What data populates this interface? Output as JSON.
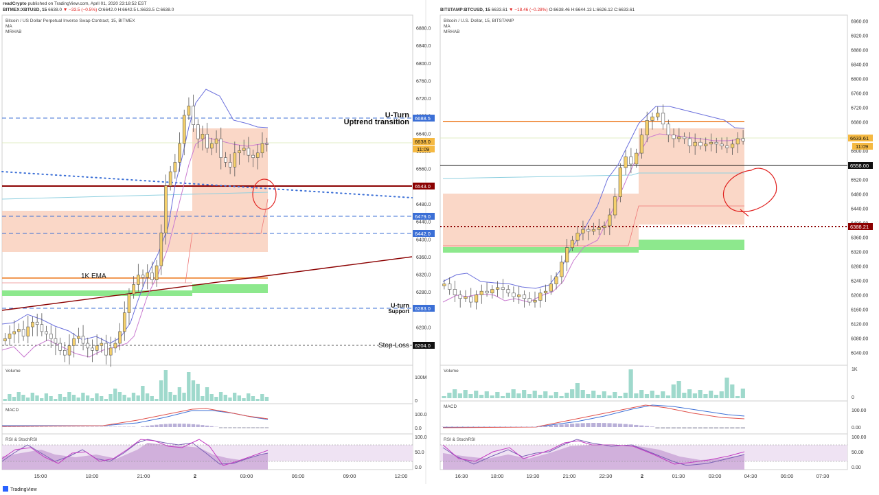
{
  "header": {
    "publish_user": "readCrypto",
    "publish_text": " published on TradingView.com, April 01, 2020 23:18:52 EST",
    "logo_text": "TradingView"
  },
  "left": {
    "symbol_line": {
      "ticker": "BITMEX:XBTUSD, 15",
      "o": "6638.0",
      "change": "▼ −33.5 (−0.5%)",
      "O": "O:6642.0",
      "H": "H:6642.5",
      "L": "L:6633.5",
      "C": "C:6638.0"
    },
    "chart_title": "Bitcoin / US Dollar Perpetual Inverse Swap Contract, 15, BITMEX",
    "indicators": [
      "MA",
      "MRHAB"
    ],
    "price_labels": [
      "6880.0",
      "6840.0",
      "6800.0",
      "6760.0",
      "6720.0",
      "6680.0",
      "6640.0",
      "6600.0",
      "6560.0",
      "6520.0",
      "6480.0",
      "6440.0",
      "6400.0",
      "6360.0",
      "6320.0",
      "6280.0",
      "6240.0",
      "6200.0"
    ],
    "tags": {
      "uturn_level": "6688.5",
      "last": "6638.0",
      "countdown": "11:09",
      "support_line": "6543.0",
      "level_6479": "6479.0",
      "level_6442": "6442.0",
      "uturn_support": "6283.0",
      "stop_loss": "6204.0"
    },
    "annotations": {
      "uturn_title": "U-Turn",
      "uturn_sub": "Uptrend transition",
      "ema": "1K EMA",
      "support_title": "U-turn",
      "support_sub": "Support",
      "stoploss": "Stop-Loss"
    },
    "volume": {
      "label": "Volume",
      "scale": [
        "100M",
        "0"
      ]
    },
    "macd": {
      "label": "MACD",
      "scale": [
        "100.0",
        "0.0"
      ]
    },
    "rsi": {
      "label": "RSI & StochRSI",
      "scale": [
        "100.0",
        "50.0",
        "0.0"
      ]
    },
    "time_labels": [
      "15:00",
      "18:00",
      "21:00",
      "2",
      "03:00",
      "06:00",
      "09:00",
      "12:00"
    ]
  },
  "right": {
    "symbol_line": {
      "ticker": "BITSTAMP:BTCUSD, 15",
      "o": "6633.61",
      "change": "▼ −18.46 (−0.28%)",
      "O": "O:6638.46",
      "H": "H:6644.13",
      "L": "L:6626.12",
      "C": "C:6633.61"
    },
    "chart_title": "Bitcoin / U.S. Dollar, 15, BITSTAMP",
    "indicators": [
      "MA",
      "MRHAB"
    ],
    "price_labels": [
      "6960.00",
      "6920.00",
      "6880.00",
      "6840.00",
      "6800.00",
      "6760.00",
      "6720.00",
      "6680.00",
      "6640.00",
      "6600.00",
      "6560.00",
      "6520.00",
      "6480.00",
      "6440.00",
      "6400.00",
      "6360.00",
      "6320.00",
      "6280.00",
      "6240.00",
      "6200.00",
      "6160.00",
      "6120.00",
      "6080.00",
      "6040.00"
    ],
    "tags": {
      "last": "6633.61",
      "countdown": "11:09",
      "black_line": "6558.00",
      "red_dotted": "6388.21"
    },
    "volume": {
      "label": "Volume",
      "scale": [
        "1K",
        "0"
      ]
    },
    "macd": {
      "label": "MACD",
      "scale": [
        "100.00",
        "0.00"
      ]
    },
    "rsi": {
      "label": "RSI & StochRSI",
      "scale": [
        "100.00",
        "50.00",
        "0.00"
      ]
    },
    "time_labels": [
      "16:30",
      "18:00",
      "19:30",
      "21:00",
      "22:30",
      "2",
      "01:30",
      "03:00",
      "04:30",
      "06:00",
      "07:30"
    ]
  },
  "colors": {
    "up": "#f5d06b",
    "down": "#ffffff",
    "ma_blue": "#6a6fdc",
    "ma_pink": "#c97ad0",
    "band_fill": "#f8c9b4",
    "green_band": "#8de88d",
    "dashed_blue": "#3b6fd6",
    "dark_red": "#8b0000",
    "orange": "#ef8a3a",
    "volume": "#9fd9cc",
    "red_circle": "#e0201e"
  },
  "chart_data": [
    {
      "type": "candlestick",
      "title": "Bitcoin / US Dollar Perpetual Inverse Swap Contract, 15, BITMEX",
      "ylim": [
        6180,
        6900
      ],
      "x": [
        "15:00",
        "18:00",
        "21:00",
        "2",
        "03:00",
        "06:00",
        "09:00",
        "12:00"
      ],
      "horizontal_levels": [
        6688.5,
        6543.0,
        6479.0,
        6442.0,
        6283.0,
        6204.0
      ],
      "series": [
        {
          "name": "XBTUSD",
          "ohlc_close": [
            6225,
            6235,
            6240,
            6245,
            6230,
            6250,
            6260,
            6255,
            6240,
            6235,
            6225,
            6215,
            6200,
            6190,
            6210,
            6225,
            6230,
            6215,
            6205,
            6200,
            6210,
            6215,
            6190,
            6205,
            6215,
            6240,
            6280,
            6320,
            6340,
            6360,
            6355,
            6365,
            6350,
            6380,
            6450,
            6550,
            6580,
            6600,
            6640,
            6700,
            6720,
            6680,
            6650,
            6660,
            6630,
            6640,
            6650,
            6610,
            6600,
            6590,
            6620,
            6625,
            6630,
            6615,
            6610,
            6620,
            6640,
            6638
          ]
        }
      ]
    },
    {
      "type": "candlestick",
      "title": "Bitcoin / U.S. Dollar, 15, BITSTAMP",
      "ylim": [
        6020,
        6980
      ],
      "x": [
        "16:30",
        "18:00",
        "19:30",
        "21:00",
        "22:30",
        "2",
        "01:30",
        "03:00",
        "04:30",
        "06:00",
        "07:30"
      ],
      "horizontal_levels": [
        6680.0,
        6558.0,
        6388.21
      ],
      "series": [
        {
          "name": "BTCUSD",
          "ohlc_close": [
            6240,
            6225,
            6210,
            6200,
            6205,
            6190,
            6210,
            6220,
            6215,
            6225,
            6230,
            6225,
            6215,
            6205,
            6210,
            6200,
            6190,
            6195,
            6215,
            6220,
            6240,
            6260,
            6300,
            6340,
            6360,
            6380,
            6390,
            6385,
            6390,
            6395,
            6400,
            6430,
            6480,
            6560,
            6590,
            6570,
            6600,
            6650,
            6690,
            6700,
            6710,
            6680,
            6650,
            6640,
            6645,
            6640,
            6620,
            6630,
            6620,
            6625,
            6630,
            6625,
            6620,
            6615,
            6625,
            6640,
            6633.61
          ]
        }
      ]
    }
  ]
}
